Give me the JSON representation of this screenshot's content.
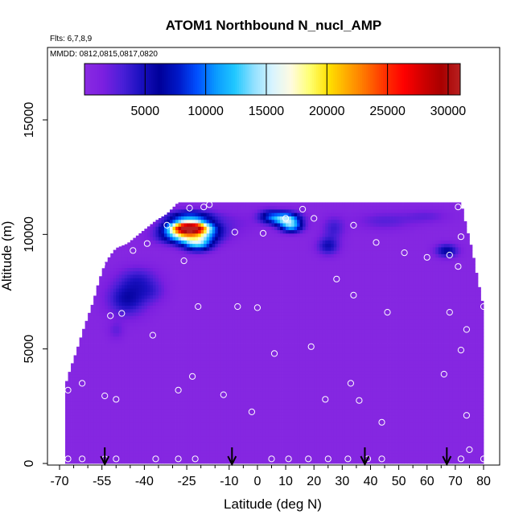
{
  "chart_data": {
    "type": "heatmap",
    "title": "ATOM1 Northbound N_nucl_AMP",
    "flights_label": "Flts: 6,7,8,9",
    "dates_label": "MMDD: 0812,0815,0817,0820",
    "xlabel": "Latitude (deg N)",
    "ylabel": "Altitude (m)",
    "xlim": [
      -70,
      80
    ],
    "ylim": [
      0,
      17500
    ],
    "x_ticks": [
      "-70",
      "-55",
      "-40",
      "-25",
      "-10",
      "0",
      "10",
      "20",
      "30",
      "40",
      "50",
      "60",
      "70",
      "80"
    ],
    "x_tick_values": [
      -70,
      -55,
      -40,
      -25,
      -10,
      0,
      10,
      20,
      30,
      40,
      50,
      60,
      70,
      80
    ],
    "x_minor_ticks": [
      -65,
      -60,
      -50,
      -45,
      -35,
      -30,
      -20,
      -15,
      -5,
      5,
      15,
      25,
      35,
      45,
      55,
      65,
      75
    ],
    "y_ticks": [
      "0",
      "5000",
      "10000",
      "15000"
    ],
    "y_tick_values": [
      0,
      5000,
      10000,
      15000
    ],
    "colorbar": {
      "min": 0,
      "max": 31000,
      "ticks": [
        "5000",
        "10000",
        "15000",
        "20000",
        "25000",
        "30000"
      ],
      "tick_values": [
        5000,
        10000,
        15000,
        20000,
        25000,
        30000
      ],
      "colors": [
        "#8a2be2",
        "#7b1fe0",
        "#4b1fd8",
        "#1a10c0",
        "#000099",
        "#0018c8",
        "#0050ff",
        "#0a9aff",
        "#20c8ff",
        "#90e0ff",
        "#d8f4ff",
        "#fffbe0",
        "#ffff70",
        "#ffe000",
        "#ffa800",
        "#ff7000",
        "#ff3000",
        "#ff0000",
        "#d00000",
        "#a80000",
        "#b82020"
      ]
    },
    "background_value": 500,
    "domain_profile": [
      [
        -68,
        3400
      ],
      [
        -66,
        4200
      ],
      [
        -64,
        4900
      ],
      [
        -62,
        5700
      ],
      [
        -60,
        6400
      ],
      [
        -58,
        7100
      ],
      [
        -56,
        8000
      ],
      [
        -54,
        8700
      ],
      [
        -52,
        9100
      ],
      [
        -50,
        9400
      ],
      [
        -46,
        9600
      ],
      [
        -44,
        9800
      ],
      [
        -40,
        10200
      ],
      [
        -36,
        10600
      ],
      [
        -32,
        10900
      ],
      [
        -28,
        11400
      ],
      [
        72,
        11400
      ],
      [
        74,
        10300
      ],
      [
        76,
        9300
      ],
      [
        78,
        8000
      ],
      [
        80,
        6800
      ]
    ],
    "hotspots": [
      {
        "lat": -24,
        "alt": 10300,
        "dlat": 7,
        "dalt": 260,
        "value": 28000
      },
      {
        "lat": -24,
        "alt": 9950,
        "dlat": 9,
        "dalt": 350,
        "value": 16000
      },
      {
        "lat": -24,
        "alt": 10750,
        "dlat": 8,
        "dalt": 300,
        "value": 9000
      },
      {
        "lat": -21,
        "alt": 9550,
        "dlat": 5,
        "dalt": 300,
        "value": 9000
      },
      {
        "lat": 10,
        "alt": 10700,
        "dlat": 5,
        "dalt": 280,
        "value": 13000
      },
      {
        "lat": 12,
        "alt": 10350,
        "dlat": 4,
        "dalt": 260,
        "value": 10000
      },
      {
        "lat": 4,
        "alt": 10800,
        "dlat": 4,
        "dalt": 300,
        "value": 5500
      },
      {
        "lat": 25,
        "alt": 9500,
        "dlat": 4,
        "dalt": 400,
        "value": 4500
      },
      {
        "lat": 27,
        "alt": 10300,
        "dlat": 4,
        "dalt": 500,
        "value": 3000
      },
      {
        "lat": 67,
        "alt": 9300,
        "dlat": 4,
        "dalt": 300,
        "value": 5500
      },
      {
        "lat": -46,
        "alt": 7200,
        "dlat": 7,
        "dalt": 750,
        "value": 5000
      },
      {
        "lat": -42,
        "alt": 8100,
        "dlat": 7,
        "dalt": 550,
        "value": 2800
      },
      {
        "lat": -37,
        "alt": 7500,
        "dlat": 5,
        "dalt": 500,
        "value": 2000
      },
      {
        "lat": -50,
        "alt": 5800,
        "dlat": 3,
        "dalt": 400,
        "value": 1800
      },
      {
        "lat": 45,
        "alt": 10600,
        "dlat": 10,
        "dalt": 400,
        "value": 2200
      },
      {
        "lat": 60,
        "alt": 10800,
        "dlat": 8,
        "dalt": 300,
        "value": 1800
      },
      {
        "lat": -10,
        "alt": 10500,
        "dlat": 10,
        "dalt": 500,
        "value": 1500
      }
    ],
    "sample_points": [
      [
        -67,
        200
      ],
      [
        -62,
        200
      ],
      [
        -54,
        200
      ],
      [
        -50,
        200
      ],
      [
        -36,
        200
      ],
      [
        -28,
        200
      ],
      [
        -22,
        200
      ],
      [
        5,
        200
      ],
      [
        11,
        200
      ],
      [
        18,
        200
      ],
      [
        25,
        200
      ],
      [
        32,
        200
      ],
      [
        39,
        200
      ],
      [
        44,
        200
      ],
      [
        72,
        200
      ],
      [
        80,
        200
      ],
      [
        -67,
        3200
      ],
      [
        -62,
        3500
      ],
      [
        -54,
        2950
      ],
      [
        -50,
        2800
      ],
      [
        -28,
        3200
      ],
      [
        -23,
        3800
      ],
      [
        -12,
        3000
      ],
      [
        -2,
        2250
      ],
      [
        24,
        2800
      ],
      [
        33,
        3500
      ],
      [
        36,
        2750
      ],
      [
        44,
        1800
      ],
      [
        66,
        3900
      ],
      [
        74,
        2100
      ],
      [
        75,
        600
      ],
      [
        -37,
        5600
      ],
      [
        6,
        4800
      ],
      [
        19,
        5100
      ],
      [
        72,
        4950
      ],
      [
        74,
        5850
      ],
      [
        -52,
        6450
      ],
      [
        -48,
        6550
      ],
      [
        -21,
        6850
      ],
      [
        -7,
        6850
      ],
      [
        0,
        6800
      ],
      [
        34,
        7350
      ],
      [
        46,
        6600
      ],
      [
        68,
        6600
      ],
      [
        80,
        6850
      ],
      [
        -55,
        8700
      ],
      [
        -26,
        8850
      ],
      [
        28,
        8050
      ],
      [
        71,
        8600
      ],
      [
        -44,
        9300
      ],
      [
        -39,
        9600
      ],
      [
        -32,
        10400
      ],
      [
        -8,
        10100
      ],
      [
        2,
        10050
      ],
      [
        34,
        10400
      ],
      [
        42,
        9650
      ],
      [
        52,
        9200
      ],
      [
        60,
        9000
      ],
      [
        68,
        9100
      ],
      [
        -24,
        11150
      ],
      [
        -19,
        11200
      ],
      [
        -17,
        11300
      ],
      [
        10,
        10700
      ],
      [
        16,
        11100
      ],
      [
        20,
        10700
      ],
      [
        71,
        11200
      ],
      [
        72,
        9900
      ]
    ],
    "flight_markers": [
      -54,
      -9,
      38,
      67
    ]
  }
}
